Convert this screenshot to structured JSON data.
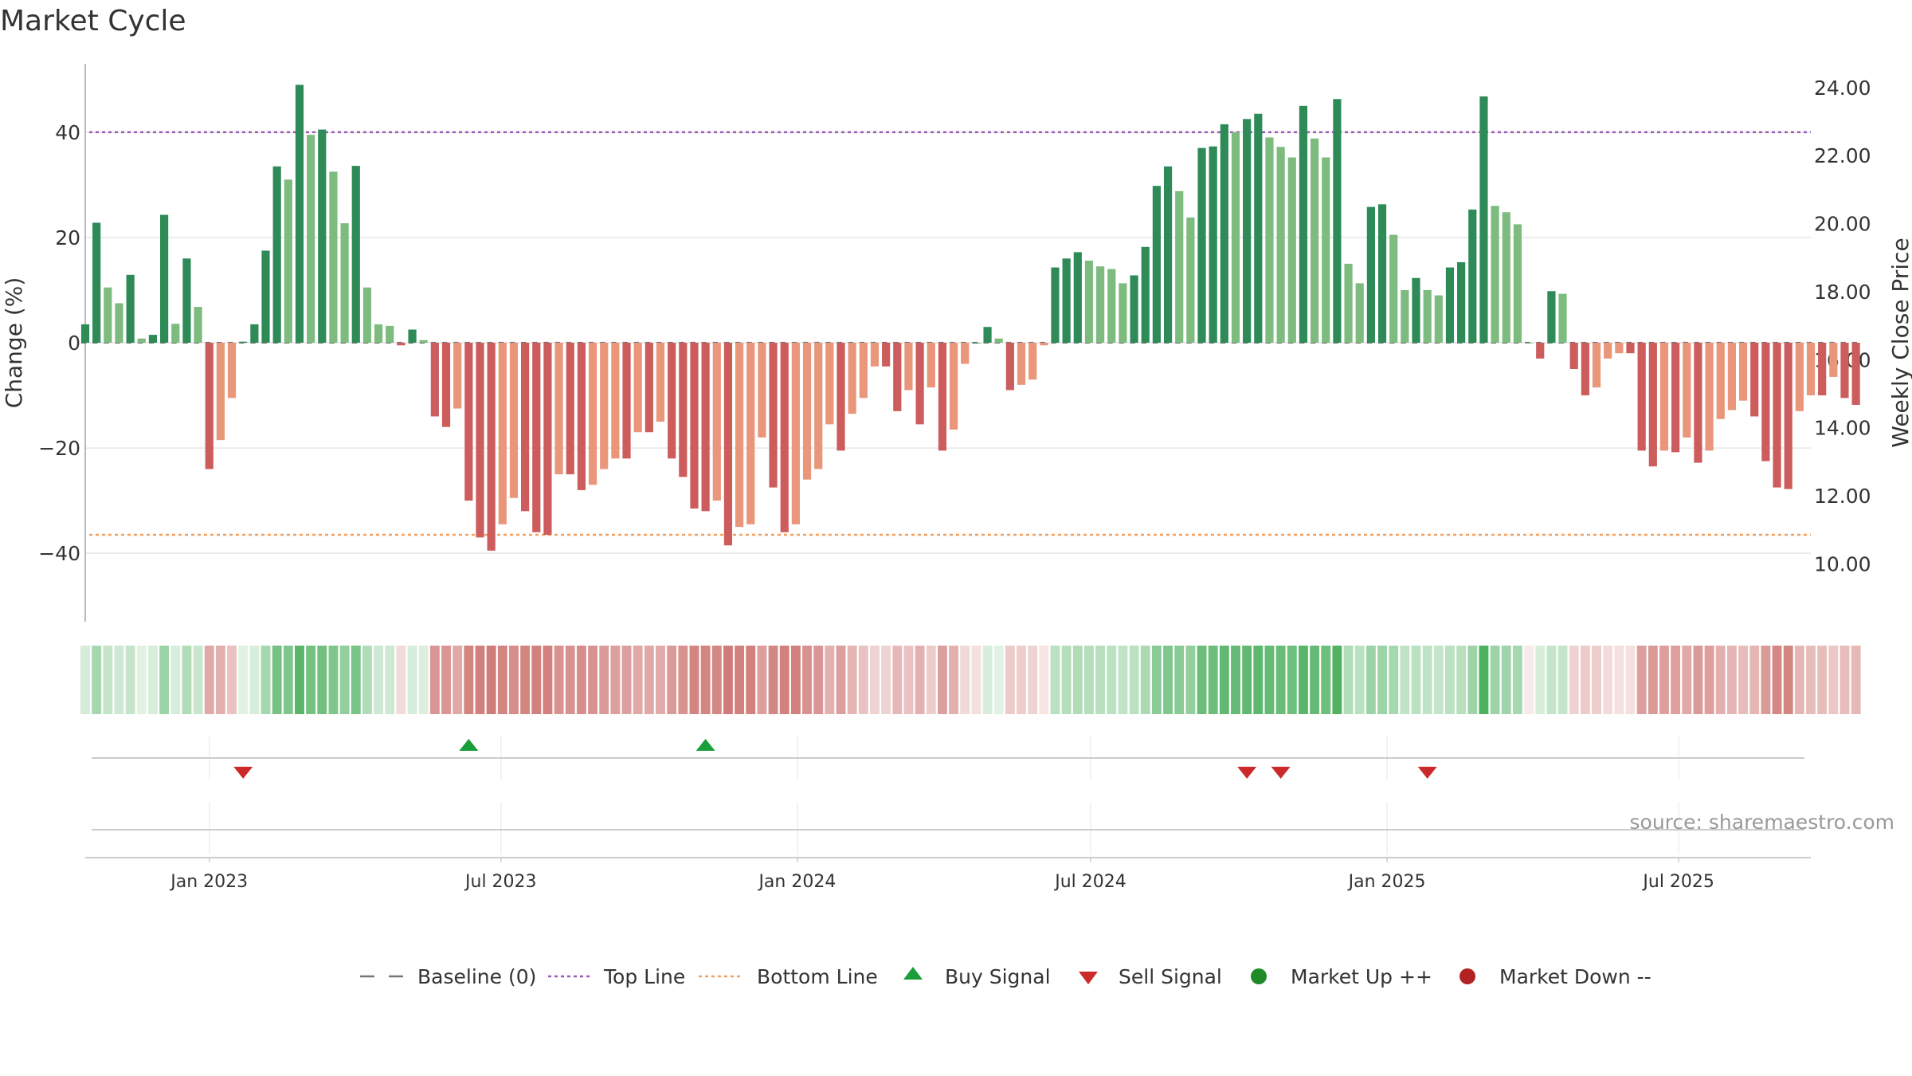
{
  "chart_data": {
    "type": "bar",
    "title": "Market Cycle",
    "ylabel": "Change (%)",
    "y2label": "Weekly Close Price",
    "ylim": [
      -53,
      53
    ],
    "y2lim": [
      8.3,
      24.7
    ],
    "yticks": [
      {
        "value": 40,
        "label": "40"
      },
      {
        "value": 20,
        "label": "20"
      },
      {
        "value": 0,
        "label": "0"
      },
      {
        "value": -20,
        "label": "−20"
      },
      {
        "value": -40,
        "label": "−40"
      }
    ],
    "y2ticks": [
      {
        "value": 24,
        "label": "24.00"
      },
      {
        "value": 22,
        "label": "22.00"
      },
      {
        "value": 20,
        "label": "20.00"
      },
      {
        "value": 18,
        "label": "18.00"
      },
      {
        "value": 16,
        "label": "16.00"
      },
      {
        "value": 14,
        "label": "14.00"
      },
      {
        "value": 12,
        "label": "12.00"
      },
      {
        "value": 10,
        "label": "10.00"
      }
    ],
    "x_range": [
      "2022-10-16",
      "2025-09-21"
    ],
    "xticks": [
      {
        "date": "2023-01-01",
        "label": "Jan 2023"
      },
      {
        "date": "2023-07-01",
        "label": "Jul 2023"
      },
      {
        "date": "2024-01-01",
        "label": "Jan 2024"
      },
      {
        "date": "2024-07-01",
        "label": "Jul 2024"
      },
      {
        "date": "2025-01-01",
        "label": "Jan 2025"
      },
      {
        "date": "2025-07-01",
        "label": "Jul 2025"
      }
    ],
    "first_week": "2022-10-16",
    "week_step_days": 7,
    "top_line": 40,
    "bottom_line": -36.5,
    "values": [
      3.5,
      22.8,
      10.5,
      7.5,
      12.9,
      0.8,
      1.5,
      24.3,
      3.6,
      16,
      6.8,
      -24,
      -18.5,
      -10.5,
      0.2,
      3.5,
      17.5,
      33.5,
      31,
      49,
      39.5,
      40.5,
      32.5,
      22.7,
      33.6,
      10.5,
      3.5,
      3.2,
      -0.5,
      2.5,
      0.5,
      -14,
      -16,
      -12.5,
      -30,
      -37,
      -39.5,
      -34.5,
      -29.5,
      -32,
      -36,
      -36.5,
      -25,
      -25,
      -28,
      -27,
      -24,
      -22,
      -22,
      -17,
      -17,
      -15,
      -22,
      -25.5,
      -31.5,
      -32,
      -30,
      -38.5,
      -35,
      -34.5,
      -18,
      -27.5,
      -36,
      -34.5,
      -26,
      -24,
      -15.5,
      -20.5,
      -13.5,
      -10.5,
      -4.5,
      -4.5,
      -13,
      -9,
      -15.5,
      -8.5,
      -20.5,
      -16.5,
      -4,
      0,
      3,
      0.8,
      -9,
      -8,
      -7,
      -0.5,
      14.3,
      16,
      17.2,
      15.6,
      14.5,
      14,
      11.3,
      12.8,
      18.2,
      29.8,
      33.5,
      28.8,
      23.8,
      37,
      37.3,
      41.5,
      40,
      42.5,
      43.5,
      39,
      37.2,
      35.2,
      45,
      38.8,
      35.2,
      46.3,
      15,
      11.3,
      25.8,
      26.3,
      20.5,
      10,
      12.3,
      10,
      9,
      14.3,
      15.3,
      25.3,
      46.8,
      26,
      24.8,
      22.5,
      0,
      -3,
      9.8,
      9.3,
      -5,
      -10,
      -8.5,
      -3,
      -2,
      -2,
      -20.5,
      -23.5,
      -20.5,
      -20.8,
      -18,
      -22.8,
      -20.5,
      -14.5,
      -12.8,
      -11,
      -14,
      -22.5,
      -27.5,
      -27.8,
      -13,
      -10,
      -10,
      -6.5,
      -10.5,
      -11.8
    ],
    "heat_strip": [
      0.22,
      0.45,
      0.3,
      0.25,
      0.3,
      0.15,
      0.2,
      0.5,
      0.2,
      0.4,
      0.28,
      -0.5,
      -0.45,
      -0.35,
      0.15,
      0.2,
      0.45,
      0.7,
      0.65,
      0.85,
      0.7,
      0.72,
      0.65,
      0.55,
      0.68,
      0.4,
      0.25,
      0.25,
      -0.2,
      0.2,
      0.18,
      -0.6,
      -0.6,
      -0.5,
      -0.7,
      -0.72,
      -0.75,
      -0.7,
      -0.65,
      -0.7,
      -0.72,
      -0.72,
      -0.62,
      -0.62,
      -0.65,
      -0.62,
      -0.58,
      -0.55,
      -0.55,
      -0.5,
      -0.5,
      -0.48,
      -0.58,
      -0.62,
      -0.7,
      -0.7,
      -0.68,
      -0.75,
      -0.72,
      -0.72,
      -0.55,
      -0.68,
      -0.72,
      -0.72,
      -0.62,
      -0.6,
      -0.45,
      -0.55,
      -0.42,
      -0.35,
      -0.25,
      -0.25,
      -0.4,
      -0.35,
      -0.45,
      -0.3,
      -0.55,
      -0.45,
      -0.22,
      -0.18,
      0.2,
      0.15,
      -0.3,
      -0.28,
      -0.25,
      -0.15,
      0.35,
      0.38,
      0.4,
      0.38,
      0.36,
      0.35,
      0.32,
      0.35,
      0.42,
      0.6,
      0.65,
      0.6,
      0.55,
      0.75,
      0.75,
      0.8,
      0.78,
      0.8,
      0.82,
      0.78,
      0.76,
      0.74,
      0.85,
      0.78,
      0.74,
      0.88,
      0.4,
      0.35,
      0.5,
      0.5,
      0.45,
      0.32,
      0.35,
      0.32,
      0.3,
      0.35,
      0.36,
      0.5,
      0.9,
      0.5,
      0.48,
      0.45,
      -0.12,
      0.2,
      0.3,
      0.3,
      -0.25,
      -0.3,
      -0.28,
      -0.2,
      -0.18,
      -0.18,
      -0.55,
      -0.58,
      -0.55,
      -0.55,
      -0.5,
      -0.58,
      -0.55,
      -0.45,
      -0.42,
      -0.38,
      -0.42,
      -0.58,
      -0.68,
      -0.7,
      -0.42,
      -0.38,
      -0.38,
      -0.32,
      -0.38,
      -0.4
    ],
    "buy_signals": [
      "2023-06-11",
      "2023-11-05"
    ],
    "sell_signals": [
      "2023-01-22",
      "2024-10-06",
      "2024-10-27",
      "2025-01-26"
    ],
    "market_up": [],
    "market_down": [],
    "source": "source: sharemaestro.com",
    "legend": {
      "placement": "bottom-center",
      "items": [
        {
          "key": "baseline",
          "label": "Baseline (0)"
        },
        {
          "key": "top",
          "label": "Top Line"
        },
        {
          "key": "bottom",
          "label": "Bottom Line"
        },
        {
          "key": "buy",
          "label": "Buy Signal"
        },
        {
          "key": "sell",
          "label": "Sell Signal"
        },
        {
          "key": "up",
          "label": "Market Up ++"
        },
        {
          "key": "down",
          "label": "Market Down --"
        }
      ]
    },
    "colors": {
      "pos_dark": "#2e8b57",
      "pos_light": "#7dbb7f",
      "neg_dark": "#cd5c5c",
      "neg_light": "#e9967a",
      "top_line": "#9b59b6",
      "bottom_line": "#f0a060",
      "baseline": "#777777",
      "buy": "#1a9e3a",
      "sell": "#cc2a2a",
      "up": "#1e8a2a",
      "down": "#b22222",
      "grid": "#e6e6e6",
      "axis": "#bbbbbb"
    }
  }
}
